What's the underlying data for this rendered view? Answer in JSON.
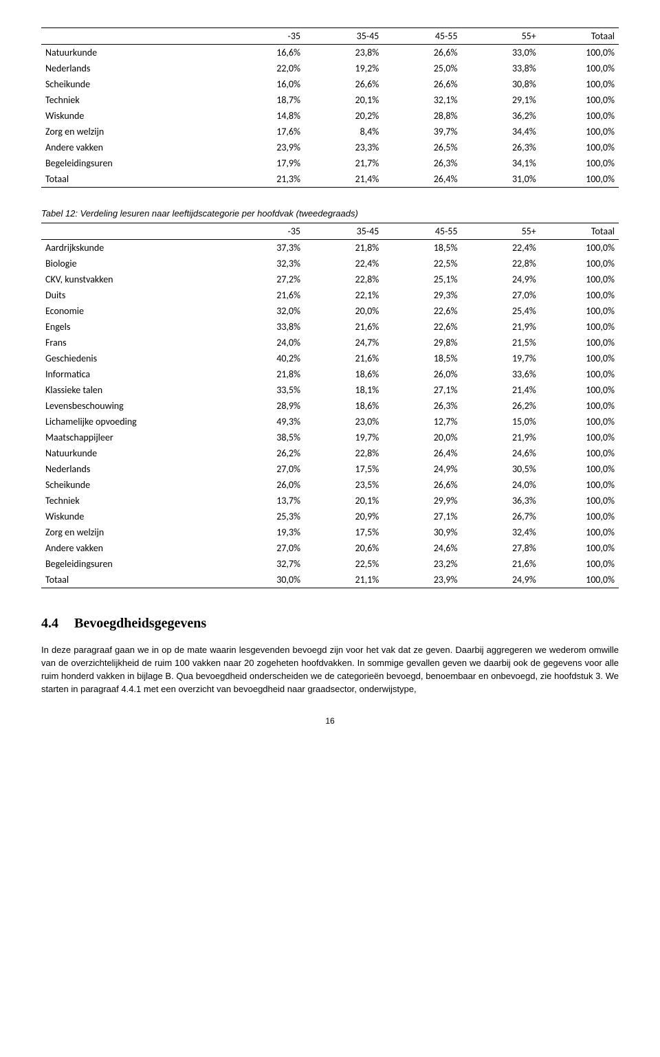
{
  "table1": {
    "columns": [
      "",
      "-35",
      "35-45",
      "45-55",
      "55+",
      "Totaal"
    ],
    "rows": [
      [
        "Natuurkunde",
        "16,6%",
        "23,8%",
        "26,6%",
        "33,0%",
        "100,0%"
      ],
      [
        "Nederlands",
        "22,0%",
        "19,2%",
        "25,0%",
        "33,8%",
        "100,0%"
      ],
      [
        "Scheikunde",
        "16,0%",
        "26,6%",
        "26,6%",
        "30,8%",
        "100,0%"
      ],
      [
        "Techniek",
        "18,7%",
        "20,1%",
        "32,1%",
        "29,1%",
        "100,0%"
      ],
      [
        "Wiskunde",
        "14,8%",
        "20,2%",
        "28,8%",
        "36,2%",
        "100,0%"
      ],
      [
        "Zorg en welzijn",
        "17,6%",
        "8,4%",
        "39,7%",
        "34,4%",
        "100,0%"
      ],
      [
        "Andere vakken",
        "23,9%",
        "23,3%",
        "26,5%",
        "26,3%",
        "100,0%"
      ],
      [
        "Begeleidingsuren",
        "17,9%",
        "21,7%",
        "26,3%",
        "34,1%",
        "100,0%"
      ],
      [
        "Totaal",
        "21,3%",
        "21,4%",
        "26,4%",
        "31,0%",
        "100,0%"
      ]
    ],
    "col_widths": [
      "32%",
      "13.6%",
      "13.6%",
      "13.6%",
      "13.6%",
      "13.6%"
    ]
  },
  "table2_caption": "Tabel 12: Verdeling lesuren naar leeftijdscategorie per hoofdvak (tweedegraads)",
  "table2": {
    "columns": [
      "",
      "-35",
      "35-45",
      "45-55",
      "55+",
      "Totaal"
    ],
    "rows": [
      [
        "Aardrijkskunde",
        "37,3%",
        "21,8%",
        "18,5%",
        "22,4%",
        "100,0%"
      ],
      [
        "Biologie",
        "32,3%",
        "22,4%",
        "22,5%",
        "22,8%",
        "100,0%"
      ],
      [
        "CKV, kunstvakken",
        "27,2%",
        "22,8%",
        "25,1%",
        "24,9%",
        "100,0%"
      ],
      [
        "Duits",
        "21,6%",
        "22,1%",
        "29,3%",
        "27,0%",
        "100,0%"
      ],
      [
        "Economie",
        "32,0%",
        "20,0%",
        "22,6%",
        "25,4%",
        "100,0%"
      ],
      [
        "Engels",
        "33,8%",
        "21,6%",
        "22,6%",
        "21,9%",
        "100,0%"
      ],
      [
        "Frans",
        "24,0%",
        "24,7%",
        "29,8%",
        "21,5%",
        "100,0%"
      ],
      [
        "Geschiedenis",
        "40,2%",
        "21,6%",
        "18,5%",
        "19,7%",
        "100,0%"
      ],
      [
        "Informatica",
        "21,8%",
        "18,6%",
        "26,0%",
        "33,6%",
        "100,0%"
      ],
      [
        "Klassieke talen",
        "33,5%",
        "18,1%",
        "27,1%",
        "21,4%",
        "100,0%"
      ],
      [
        "Levensbeschouwing",
        "28,9%",
        "18,6%",
        "26,3%",
        "26,2%",
        "100,0%"
      ],
      [
        "Lichamelijke opvoeding",
        "49,3%",
        "23,0%",
        "12,7%",
        "15,0%",
        "100,0%"
      ],
      [
        "Maatschappijleer",
        "38,5%",
        "19,7%",
        "20,0%",
        "21,9%",
        "100,0%"
      ],
      [
        "Natuurkunde",
        "26,2%",
        "22,8%",
        "26,4%",
        "24,6%",
        "100,0%"
      ],
      [
        "Nederlands",
        "27,0%",
        "17,5%",
        "24,9%",
        "30,5%",
        "100,0%"
      ],
      [
        "Scheikunde",
        "26,0%",
        "23,5%",
        "26,6%",
        "24,0%",
        "100,0%"
      ],
      [
        "Techniek",
        "13,7%",
        "20,1%",
        "29,9%",
        "36,3%",
        "100,0%"
      ],
      [
        "Wiskunde",
        "25,3%",
        "20,9%",
        "27,1%",
        "26,7%",
        "100,0%"
      ],
      [
        "Zorg en welzijn",
        "19,3%",
        "17,5%",
        "30,9%",
        "32,4%",
        "100,0%"
      ],
      [
        "Andere vakken",
        "27,0%",
        "20,6%",
        "24,6%",
        "27,8%",
        "100,0%"
      ],
      [
        "Begeleidingsuren",
        "32,7%",
        "22,5%",
        "23,2%",
        "21,6%",
        "100,0%"
      ],
      [
        "Totaal",
        "30,0%",
        "21,1%",
        "23,9%",
        "24,9%",
        "100,0%"
      ]
    ],
    "col_widths": [
      "32%",
      "13.6%",
      "13.6%",
      "13.6%",
      "13.6%",
      "13.6%"
    ]
  },
  "section": {
    "number": "4.4",
    "title": "Bevoegdheidsgegevens"
  },
  "paragraph": "In deze paragraaf gaan we in op de mate waarin lesgevenden bevoegd zijn voor het vak dat ze geven. Daarbij aggregeren we wederom omwille van de overzichtelijkheid de ruim 100 vakken naar 20 zogeheten hoofdvakken. In sommige gevallen geven we daarbij ook de gegevens voor alle ruim honderd vakken in bijlage B. Qua bevoegdheid onderscheiden we de categorieën bevoegd, benoembaar en onbevoegd, zie hoofdstuk 3. We starten in paragraaf 4.4.1 met een overzicht van bevoegdheid naar graadsector, onderwijstype,",
  "page_number": "16"
}
